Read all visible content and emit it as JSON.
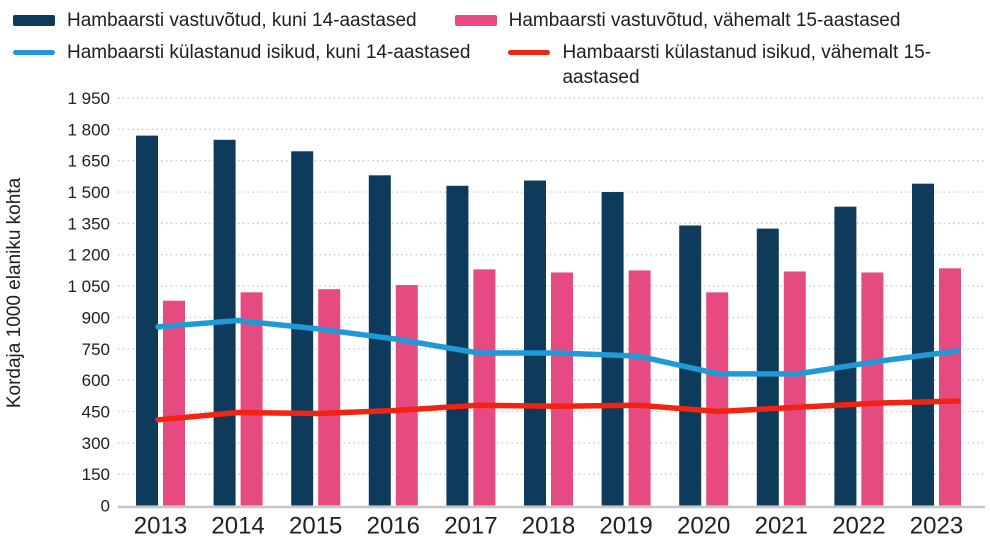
{
  "page": {
    "background": "#ffffff",
    "text_color": "#202020",
    "gridline_color": "#c9c9c9",
    "axisline_color": "#c6c6c6"
  },
  "legend": {
    "position": "top",
    "rows": 2,
    "columns": 2
  },
  "chart_data": {
    "type": "bar+line",
    "title": "",
    "xlabel": "",
    "ylabel": "Kordaja 1000 elaniku kohta",
    "ylim": [
      0,
      1950
    ],
    "ytick_step": 150,
    "yticks": [
      0,
      150,
      300,
      450,
      600,
      750,
      900,
      1050,
      1200,
      1350,
      1500,
      1650,
      1800,
      1950
    ],
    "ytick_label_format": "space-thousands",
    "grid": "horizontal-dotted",
    "legend_position": "top",
    "categories": [
      "2013",
      "2014",
      "2015",
      "2016",
      "2017",
      "2018",
      "2019",
      "2020",
      "2021",
      "2022",
      "2023"
    ],
    "series": [
      {
        "name": "Hambaarsti vastuvõtud, kuni 14-aastased",
        "type": "bar",
        "color": "#0e3a5c",
        "values": [
          1770,
          1750,
          1695,
          1580,
          1530,
          1555,
          1500,
          1340,
          1325,
          1430,
          1540
        ]
      },
      {
        "name": "Hambaarsti vastuvõtud, vähemalt 15-aastased",
        "type": "bar",
        "color": "#e54b80",
        "values": [
          980,
          1020,
          1035,
          1055,
          1130,
          1115,
          1125,
          1020,
          1120,
          1115,
          1135
        ]
      },
      {
        "name": "Hambaarsti külastanud isikud, kuni 14-aastased",
        "type": "line",
        "color": "#1f9ad7",
        "values": [
          855,
          885,
          845,
          795,
          730,
          730,
          715,
          630,
          630,
          690,
          740
        ]
      },
      {
        "name": "Hambaarsti külastanud isikud, vähemalt 15-aastased",
        "type": "line",
        "color": "#f22310",
        "values": [
          410,
          445,
          440,
          455,
          480,
          475,
          480,
          450,
          470,
          490,
          500
        ]
      }
    ]
  }
}
